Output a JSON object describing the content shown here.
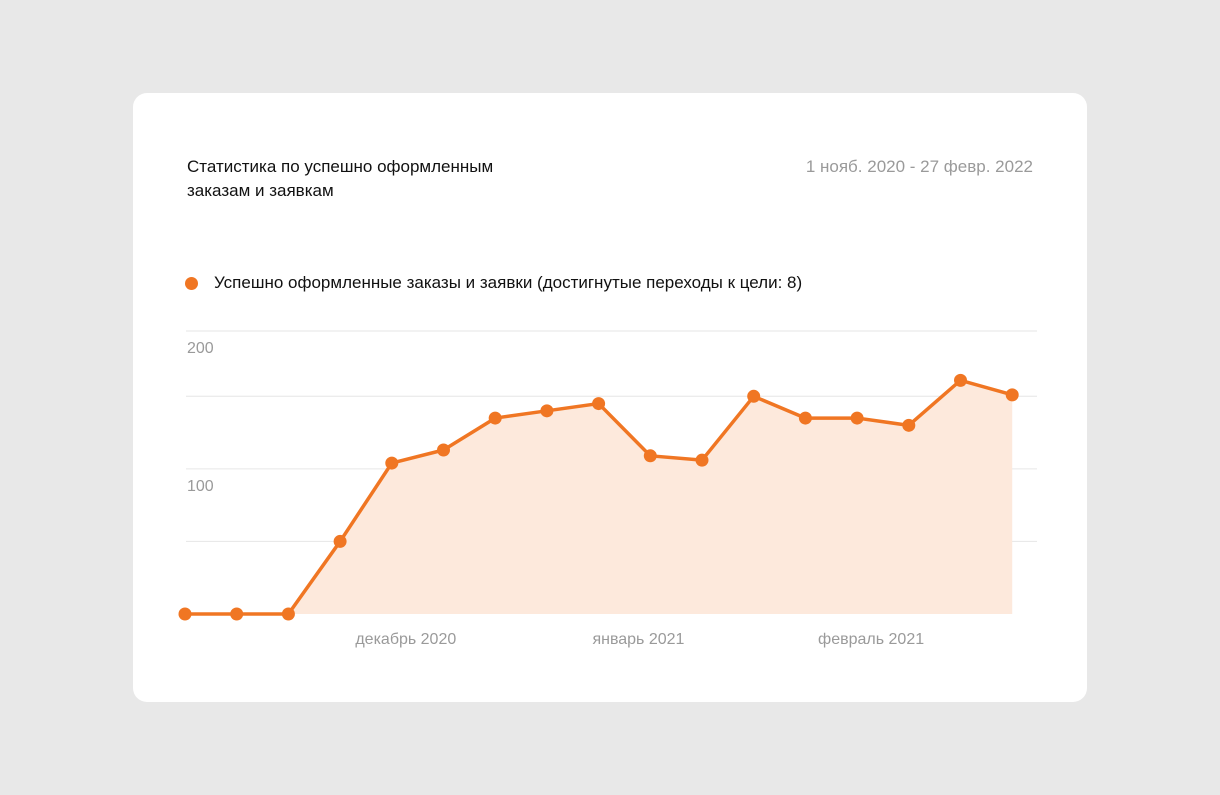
{
  "card": {
    "title": "Статистика по успешно оформленным заказам и заявкам",
    "date_range": "1 нояб. 2020 - 27 февр. 2022"
  },
  "legend": {
    "label": "Успешно оформленные заказы и заявки (достигнутые переходы к цели: 8)"
  },
  "colors": {
    "series": "#f07623",
    "area_fill": "#fde9dc",
    "grid": "#e6e6e6",
    "tick_text": "#9a9a9a"
  },
  "chart_data": {
    "type": "area",
    "title": "Статистика по успешно оформленным заказам и заявкам",
    "xlabel": "",
    "ylabel": "",
    "y_ticks": [
      {
        "value": 200,
        "label": "200"
      },
      {
        "value": 100,
        "label": "100"
      }
    ],
    "gridlines": [
      0,
      50,
      100,
      150,
      195
    ],
    "ylim": [
      0,
      195
    ],
    "x_ticks": [
      {
        "index": 4,
        "label": "декабрь 2020"
      },
      {
        "index": 8.5,
        "label": "январь 2021"
      },
      {
        "index": 13,
        "label": "февраль 2021"
      }
    ],
    "grid": true,
    "series": [
      {
        "name": "Успешно оформленные заказы и заявки",
        "values": [
          0,
          0,
          0,
          50,
          104,
          113,
          135,
          140,
          145,
          109,
          106,
          150,
          135,
          135,
          130,
          161,
          151
        ]
      }
    ]
  }
}
